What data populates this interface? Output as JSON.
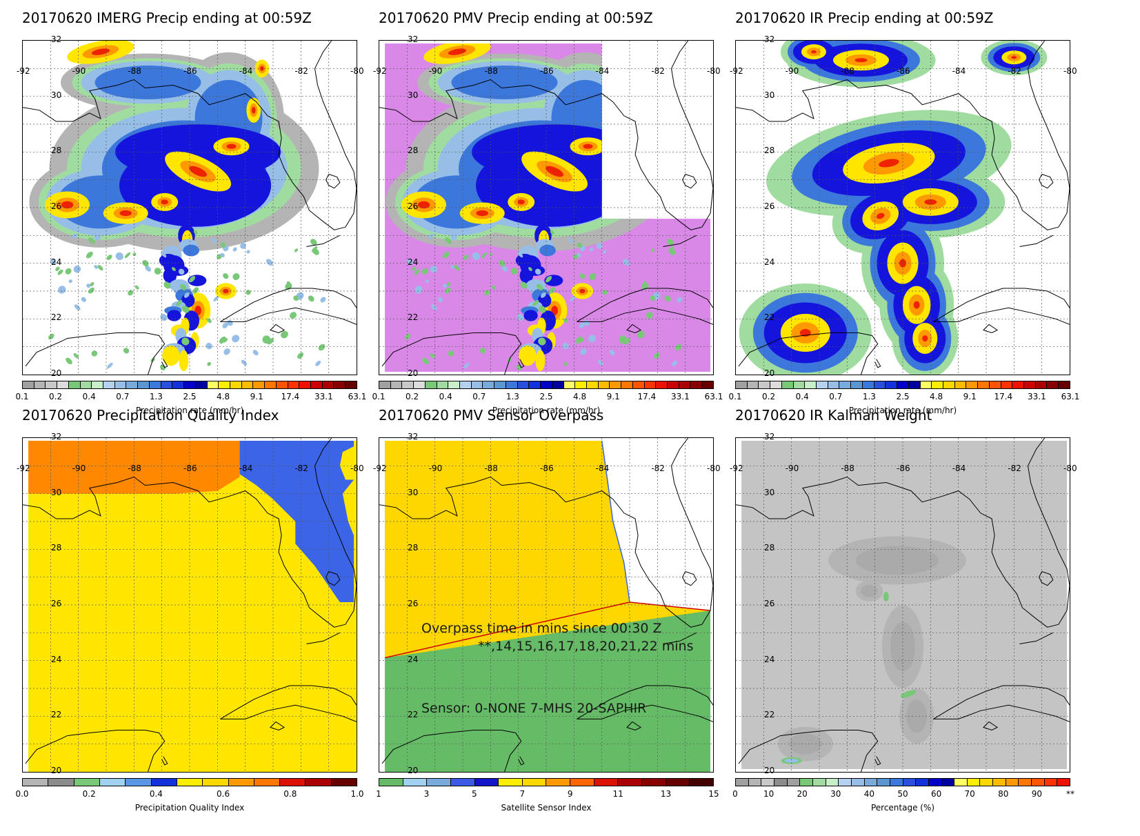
{
  "panels": [
    {
      "title": "20170620 IMERG Precip ending at 00:59Z",
      "map_kind": "precip",
      "colorbar": {
        "ticks": [
          "0.1",
          "0.2",
          "0.4",
          "0.7",
          "1.3",
          "2.5",
          "4.8",
          "9.1",
          "17.4",
          "33.1",
          "63.1"
        ],
        "label": "Precipitation rate (mm/hr)",
        "colors": [
          "#a0a0a0",
          "#b4b4b4",
          "#c8c8c8",
          "#dcdcdc",
          "#78c878",
          "#a0dca0",
          "#c8f0c8",
          "#b4d2f0",
          "#96bee6",
          "#78aadc",
          "#5a96d2",
          "#3c78dc",
          "#2850dc",
          "#1432dc",
          "#0000c8",
          "#0000a0",
          "#ffff66",
          "#ffee00",
          "#ffd700",
          "#ffbb00",
          "#ff9900",
          "#ff7700",
          "#ff5500",
          "#ff3300",
          "#ee1100",
          "#cc0000",
          "#aa0000",
          "#880000",
          "#660000"
        ]
      }
    },
    {
      "title": "20170620 PMV Precip ending at 00:59Z",
      "map_kind": "pmv",
      "colorbar": {
        "ticks": [
          "0.1",
          "0.2",
          "0.4",
          "0.7",
          "1.3",
          "2.5",
          "4.8",
          "9.1",
          "17.4",
          "33.1",
          "63.1"
        ],
        "label": "Precipitation rate (mm/hr)",
        "colors": [
          "#a0a0a0",
          "#b4b4b4",
          "#c8c8c8",
          "#dcdcdc",
          "#78c878",
          "#a0dca0",
          "#c8f0c8",
          "#b4d2f0",
          "#96bee6",
          "#78aadc",
          "#5a96d2",
          "#3c78dc",
          "#2850dc",
          "#1432dc",
          "#0000c8",
          "#0000a0",
          "#ffff66",
          "#ffee00",
          "#ffd700",
          "#ffbb00",
          "#ff9900",
          "#ff7700",
          "#ff5500",
          "#ff3300",
          "#ee1100",
          "#cc0000",
          "#aa0000",
          "#880000",
          "#660000"
        ]
      }
    },
    {
      "title": "20170620 IR Precip ending at 00:59Z",
      "map_kind": "ir",
      "colorbar": {
        "ticks": [
          "0.1",
          "0.2",
          "0.4",
          "0.7",
          "1.3",
          "2.5",
          "4.8",
          "9.1",
          "17.4",
          "33.1",
          "63.1"
        ],
        "label": "Precipitation rate (mm/hr)",
        "colors": [
          "#a0a0a0",
          "#b4b4b4",
          "#c8c8c8",
          "#dcdcdc",
          "#78c878",
          "#a0dca0",
          "#c8f0c8",
          "#b4d2f0",
          "#96bee6",
          "#78aadc",
          "#5a96d2",
          "#3c78dc",
          "#2850dc",
          "#1432dc",
          "#0000c8",
          "#0000a0",
          "#ffff66",
          "#ffee00",
          "#ffd700",
          "#ffbb00",
          "#ff9900",
          "#ff7700",
          "#ff5500",
          "#ff3300",
          "#ee1100",
          "#cc0000",
          "#aa0000",
          "#880000",
          "#660000"
        ]
      }
    },
    {
      "title": "20170620 Precipitation Quality Index",
      "map_kind": "quality",
      "colorbar": {
        "ticks": [
          "0.0",
          "0.2",
          "0.4",
          "0.6",
          "0.8",
          "1.0"
        ],
        "label": "Precipitation Quality Index",
        "colors": [
          "#b4b4b4",
          "#8c8c8c",
          "#78c878",
          "#a0d2f0",
          "#5a96e6",
          "#1432dc",
          "#ffee00",
          "#ffd700",
          "#ff9900",
          "#ff7700",
          "#dd1100",
          "#aa0000",
          "#660000"
        ]
      }
    },
    {
      "title": "20170620 PMV Sensor Overpass",
      "map_kind": "overpass",
      "colorbar": {
        "ticks": [
          "1",
          "3",
          "5",
          "7",
          "9",
          "11",
          "13",
          "15"
        ],
        "label": "Satellite Sensor Index",
        "colors": [
          "#66bb66",
          "#a0d2f0",
          "#78aadc",
          "#3c5ae6",
          "#1414c8",
          "#ffee00",
          "#ffd700",
          "#ff9900",
          "#ff6600",
          "#dd1100",
          "#aa0000",
          "#880000",
          "#660000",
          "#440000"
        ]
      },
      "overlay": {
        "line1": "Overpass time in mins since 00:30 Z",
        "line2": "**,14,15,16,17,18,20,21,22 mins",
        "line3": "Sensor:   0-NONE  7-MHS 20-SAPHIR"
      }
    },
    {
      "title": "20170620 IR Kalman Weight",
      "map_kind": "kalman",
      "colorbar": {
        "ticks": [
          "0",
          "10",
          "20",
          "30",
          "40",
          "50",
          "60",
          "70",
          "80",
          "90",
          "**"
        ],
        "label": "Percentage (%)",
        "colors": [
          "#a0a0a0",
          "#b4b4b4",
          "#c8c8c8",
          "#8c8c8c",
          "#a0a0a0",
          "#78c878",
          "#a0dca0",
          "#c8f0c8",
          "#b4d2f0",
          "#96bee6",
          "#78aadc",
          "#5a96d2",
          "#3c78dc",
          "#2850dc",
          "#1432dc",
          "#0000c8",
          "#0000a0",
          "#ffff66",
          "#ffee00",
          "#ffd700",
          "#ffbb00",
          "#ff9900",
          "#ff7700",
          "#ff5500",
          "#ff3300",
          "#ee1100"
        ]
      }
    }
  ],
  "lat_labels": [
    "32",
    "30",
    "28",
    "26",
    "24",
    "22",
    "20"
  ],
  "lon_labels": [
    "-92",
    "-90",
    "-88",
    "-86",
    "-84",
    "-82",
    "-80"
  ]
}
